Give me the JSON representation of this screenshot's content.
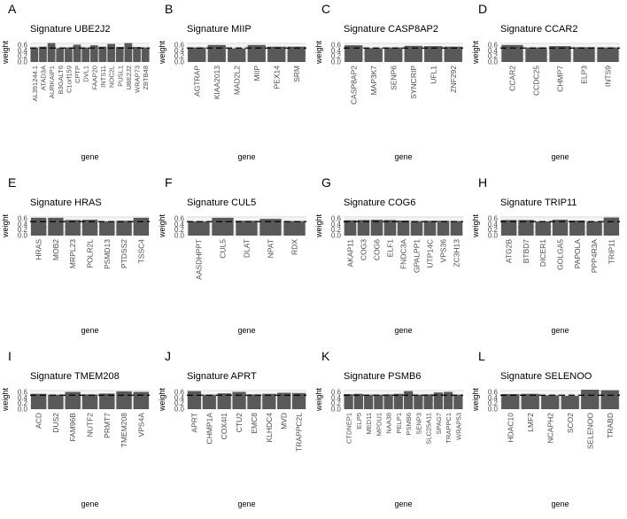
{
  "colors": {
    "panel_background": "#ebebeb",
    "grid_line": "#ffffff",
    "bar_fill": "#595959",
    "reference_line": "#000000",
    "text": "#000000",
    "axis_text": "#4d4d4d"
  },
  "chart_data": [
    {
      "type": "bar",
      "panel_label": "A",
      "title": "Signature UBE2J2",
      "xlabel": "gene",
      "ylabel": "weight",
      "ylim": [
        0,
        0.7
      ],
      "yticks": [
        0,
        0.2,
        0.4,
        0.6
      ],
      "ytick_labels": [
        "0.0",
        "0.2",
        "0.4",
        "0.6"
      ],
      "reference_line": 0.5,
      "categories": [
        "AL391244.1",
        "ATAD3A",
        "AURKAIP1",
        "B3GALT6",
        "C1orf159",
        "CPTP",
        "DVL1",
        "FAAP20",
        "INTS11",
        "NOC2L",
        "PUSL1",
        "UBE2J2",
        "WRAP73",
        "ZBTB48"
      ],
      "values": [
        0.52,
        0.55,
        0.68,
        0.5,
        0.52,
        0.62,
        0.52,
        0.6,
        0.55,
        0.65,
        0.54,
        0.68,
        0.54,
        0.52
      ]
    },
    {
      "type": "bar",
      "panel_label": "B",
      "title": "Signature MIIP",
      "xlabel": "gene",
      "ylabel": "weight",
      "ylim": [
        0,
        0.7
      ],
      "yticks": [
        0,
        0.2,
        0.4,
        0.6
      ],
      "ytick_labels": [
        "0.0",
        "0.2",
        "0.4",
        "0.6"
      ],
      "reference_line": 0.5,
      "categories": [
        "AGTRAP",
        "KIAA2013",
        "MAD2L2",
        "MIIP",
        "PEX14",
        "SRM"
      ],
      "values": [
        0.52,
        0.61,
        0.49,
        0.61,
        0.55,
        0.55
      ]
    },
    {
      "type": "bar",
      "panel_label": "C",
      "title": "Signature CASP8AP2",
      "xlabel": "gene",
      "ylabel": "weight",
      "ylim": [
        0,
        0.7
      ],
      "yticks": [
        0,
        0.2,
        0.4,
        0.6
      ],
      "ytick_labels": [
        "0.0",
        "0.2",
        "0.4",
        "0.6"
      ],
      "reference_line": 0.5,
      "categories": [
        "CASP8AP2",
        "MAP3K7",
        "SENP6",
        "SYNCRIP",
        "UFL1",
        "ZNF292"
      ],
      "values": [
        0.6,
        0.5,
        0.52,
        0.58,
        0.57,
        0.55
      ]
    },
    {
      "type": "bar",
      "panel_label": "D",
      "title": "Signature CCAR2",
      "xlabel": "gene",
      "ylabel": "weight",
      "ylim": [
        0,
        0.7
      ],
      "yticks": [
        0,
        0.2,
        0.4,
        0.6
      ],
      "ytick_labels": [
        "0.0",
        "0.2",
        "0.4",
        "0.6"
      ],
      "reference_line": 0.5,
      "categories": [
        "CCAR2",
        "CCDC25",
        "CHMP7",
        "ELP3",
        "INTS9"
      ],
      "values": [
        0.61,
        0.52,
        0.57,
        0.53,
        0.52
      ]
    },
    {
      "type": "bar",
      "panel_label": "E",
      "title": "Signature HRAS",
      "xlabel": "gene",
      "ylabel": "weight",
      "ylim": [
        0,
        0.7
      ],
      "yticks": [
        0,
        0.2,
        0.4,
        0.6
      ],
      "ytick_labels": [
        "0.0",
        "0.2",
        "0.4",
        "0.6"
      ],
      "reference_line": 0.5,
      "categories": [
        "HRAS",
        "MOB2",
        "MRPL23",
        "POLR2L",
        "PSMD13",
        "PTDSS2",
        "TSSC4"
      ],
      "values": [
        0.64,
        0.64,
        0.56,
        0.57,
        0.51,
        0.53,
        0.64
      ]
    },
    {
      "type": "bar",
      "panel_label": "F",
      "title": "Signature CUL5",
      "xlabel": "gene",
      "ylabel": "weight",
      "ylim": [
        0,
        0.7
      ],
      "yticks": [
        0,
        0.2,
        0.4,
        0.6
      ],
      "ytick_labels": [
        "0.0",
        "0.2",
        "0.4",
        "0.6"
      ],
      "reference_line": 0.5,
      "categories": [
        "AASDHPPT",
        "CUL5",
        "DLAT",
        "NPAT",
        "RDX"
      ],
      "values": [
        0.51,
        0.64,
        0.53,
        0.6,
        0.52
      ]
    },
    {
      "type": "bar",
      "panel_label": "G",
      "title": "Signature COG6",
      "xlabel": "gene",
      "ylabel": "weight",
      "ylim": [
        0,
        0.7
      ],
      "yticks": [
        0,
        0.2,
        0.4,
        0.6
      ],
      "ytick_labels": [
        "0.0",
        "0.2",
        "0.4",
        "0.6"
      ],
      "reference_line": 0.5,
      "categories": [
        "AKAP11",
        "COG3",
        "COG6",
        "ELF1",
        "FNDC3A",
        "GPALPP1",
        "UTP14C",
        "VPS36",
        "ZC3H13"
      ],
      "values": [
        0.55,
        0.56,
        0.57,
        0.56,
        0.54,
        0.52,
        0.53,
        0.53,
        0.52
      ]
    },
    {
      "type": "bar",
      "panel_label": "H",
      "title": "Signature TRIP11",
      "xlabel": "gene",
      "ylabel": "weight",
      "ylim": [
        0,
        0.7
      ],
      "yticks": [
        0,
        0.2,
        0.4,
        0.6
      ],
      "ytick_labels": [
        "0.0",
        "0.2",
        "0.4",
        "0.6"
      ],
      "reference_line": 0.5,
      "categories": [
        "ATG2B",
        "BTBD7",
        "DICER1",
        "GOLGA5",
        "PAPOLA",
        "PPP4R3A",
        "TRIP11"
      ],
      "values": [
        0.56,
        0.56,
        0.51,
        0.57,
        0.54,
        0.51,
        0.65
      ]
    },
    {
      "type": "bar",
      "panel_label": "I",
      "title": "Signature TMEM208",
      "xlabel": "gene",
      "ylabel": "weight",
      "ylim": [
        0,
        0.7
      ],
      "yticks": [
        0,
        0.2,
        0.4,
        0.6
      ],
      "ytick_labels": [
        "0.0",
        "0.2",
        "0.4",
        "0.6"
      ],
      "reference_line": 0.5,
      "categories": [
        "ACD",
        "DUS2",
        "FAM96B",
        "NUTF2",
        "PRMT7",
        "TMEM208",
        "VPS4A"
      ],
      "values": [
        0.55,
        0.52,
        0.62,
        0.53,
        0.56,
        0.64,
        0.62
      ]
    },
    {
      "type": "bar",
      "panel_label": "J",
      "title": "Signature APRT",
      "xlabel": "gene",
      "ylabel": "weight",
      "ylim": [
        0,
        0.7
      ],
      "yticks": [
        0,
        0.2,
        0.4,
        0.6
      ],
      "ytick_labels": [
        "0.0",
        "0.2",
        "0.4",
        "0.6"
      ],
      "reference_line": 0.5,
      "categories": [
        "APRT",
        "CHMP1A",
        "COX4I1",
        "CTU2",
        "EMC8",
        "KLHDC4",
        "MVD",
        "TRAPPC2L"
      ],
      "values": [
        0.65,
        0.52,
        0.57,
        0.62,
        0.53,
        0.55,
        0.59,
        0.58
      ]
    },
    {
      "type": "bar",
      "panel_label": "K",
      "title": "Signature PSMB6",
      "xlabel": "gene",
      "ylabel": "weight",
      "ylim": [
        0,
        0.7
      ],
      "yticks": [
        0,
        0.2,
        0.4,
        0.6
      ],
      "ytick_labels": [
        "0.0",
        "0.2",
        "0.4",
        "0.6"
      ],
      "reference_line": 0.5,
      "categories": [
        "CTDNEP1",
        "ELP5",
        "MED11",
        "MPDU1",
        "NAA38",
        "PELP1",
        "PSMB6",
        "SENP3",
        "SLC25A11",
        "SPAG7",
        "TRAPPC1",
        "WRAP53"
      ],
      "values": [
        0.54,
        0.55,
        0.52,
        0.52,
        0.53,
        0.55,
        0.65,
        0.52,
        0.53,
        0.6,
        0.62,
        0.52
      ]
    },
    {
      "type": "bar",
      "panel_label": "L",
      "title": "Signature SELENOO",
      "xlabel": "gene",
      "ylabel": "weight",
      "ylim": [
        0,
        0.7
      ],
      "yticks": [
        0,
        0.2,
        0.4,
        0.6
      ],
      "ytick_labels": [
        "0.0",
        "0.2",
        "0.4",
        "0.6"
      ],
      "reference_line": 0.5,
      "categories": [
        "HDAC10",
        "LMF2",
        "NCAPH2",
        "SCO2",
        "SELENOO",
        "TRABD"
      ],
      "values": [
        0.54,
        0.55,
        0.5,
        0.48,
        0.7,
        0.68
      ]
    }
  ]
}
